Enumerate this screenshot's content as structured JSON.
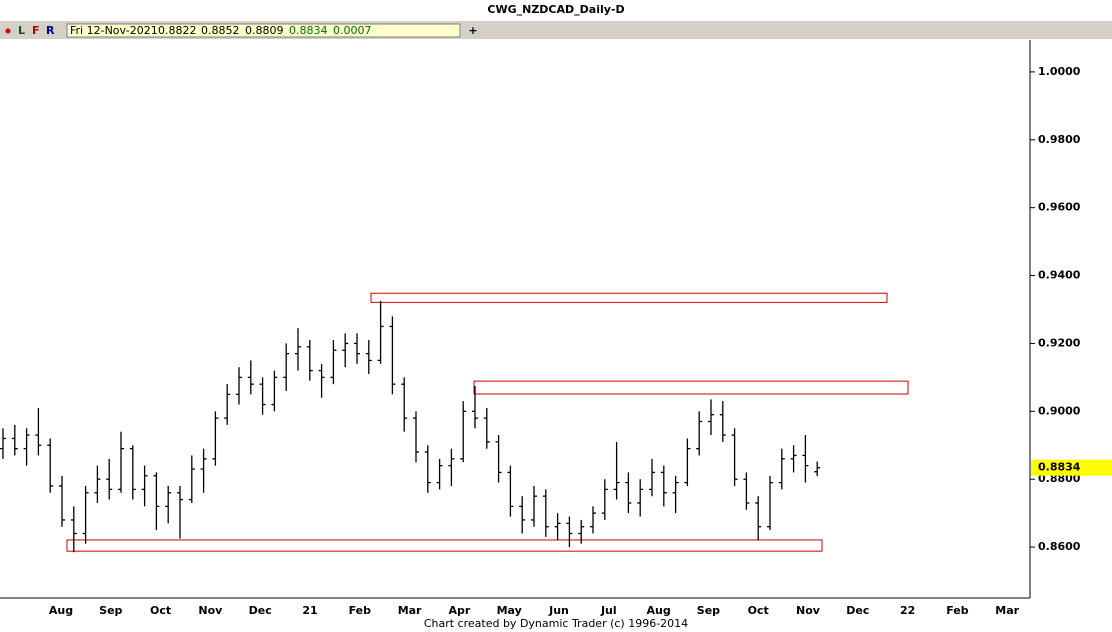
{
  "chart_data": {
    "type": "ohlc",
    "title": "CWG_NZDCAD_Daily-D",
    "toolbar": {
      "buttons": [
        "L",
        "F",
        "R"
      ],
      "info": [
        "Fri 12-Nov-2021",
        "0.8822",
        "0.8852",
        "0.8809",
        "0.8834",
        "0.0007"
      ],
      "add": "+"
    },
    "footer": "Chart created by Dynamic Trader  (c) 1996-2014",
    "x_labels": [
      "Aug",
      "Sep",
      "Oct",
      "Nov",
      "Dec",
      "21",
      "Feb",
      "Mar",
      "Apr",
      "May",
      "Jun",
      "Jul",
      "Aug",
      "Sep",
      "Oct",
      "Nov",
      "Dec",
      "22",
      "Feb",
      "Mar"
    ],
    "color": "#000000",
    "open": [
      0.889,
      0.892,
      0.889,
      0.893,
      0.89,
      0.878,
      0.868,
      0.864,
      0.876,
      0.88,
      0.877,
      0.889,
      0.877,
      0.881,
      0.872,
      0.876,
      0.874,
      0.883,
      0.886,
      0.898,
      0.905,
      0.91,
      0.908,
      0.902,
      0.91,
      0.917,
      0.919,
      0.912,
      0.91,
      0.918,
      0.92,
      0.917,
      0.915,
      0.925,
      0.908,
      0.898,
      0.888,
      0.879,
      0.884,
      0.886,
      0.9,
      0.898,
      0.891,
      0.882,
      0.872,
      0.868,
      0.875,
      0.866,
      0.867,
      0.864,
      0.866,
      0.87,
      0.877,
      0.879,
      0.873,
      0.877,
      0.882,
      0.876,
      0.879,
      0.889,
      0.897,
      0.899,
      0.893,
      0.88,
      0.873,
      0.866,
      0.879,
      0.886,
      0.887,
      0.8822
    ],
    "high": [
      0.895,
      0.896,
      0.895,
      0.901,
      0.892,
      0.881,
      0.872,
      0.878,
      0.884,
      0.886,
      0.894,
      0.89,
      0.884,
      0.882,
      0.878,
      0.878,
      0.887,
      0.889,
      0.9,
      0.908,
      0.913,
      0.915,
      0.91,
      0.912,
      0.92,
      0.9245,
      0.921,
      0.914,
      0.921,
      0.923,
      0.923,
      0.921,
      0.9325,
      0.928,
      0.91,
      0.9,
      0.89,
      0.886,
      0.889,
      0.903,
      0.9075,
      0.901,
      0.893,
      0.884,
      0.875,
      0.878,
      0.877,
      0.87,
      0.869,
      0.868,
      0.872,
      0.88,
      0.891,
      0.882,
      0.88,
      0.886,
      0.884,
      0.881,
      0.892,
      0.9,
      0.9035,
      0.903,
      0.895,
      0.882,
      0.875,
      0.881,
      0.889,
      0.89,
      0.893,
      0.8852
    ],
    "low": [
      0.886,
      0.887,
      0.884,
      0.887,
      0.876,
      0.866,
      0.8585,
      0.861,
      0.873,
      0.874,
      0.876,
      0.874,
      0.872,
      0.865,
      0.867,
      0.8625,
      0.873,
      0.876,
      0.884,
      0.896,
      0.902,
      0.905,
      0.899,
      0.9,
      0.906,
      0.912,
      0.909,
      0.904,
      0.908,
      0.913,
      0.914,
      0.911,
      0.914,
      0.905,
      0.894,
      0.885,
      0.876,
      0.877,
      0.878,
      0.885,
      0.895,
      0.889,
      0.879,
      0.869,
      0.864,
      0.866,
      0.863,
      0.862,
      0.86,
      0.861,
      0.864,
      0.868,
      0.874,
      0.87,
      0.869,
      0.875,
      0.872,
      0.87,
      0.878,
      0.887,
      0.893,
      0.891,
      0.878,
      0.871,
      0.862,
      0.865,
      0.877,
      0.882,
      0.879,
      0.8809
    ],
    "close": [
      0.892,
      0.889,
      0.893,
      0.89,
      0.878,
      0.868,
      0.864,
      0.876,
      0.88,
      0.877,
      0.889,
      0.877,
      0.881,
      0.872,
      0.876,
      0.874,
      0.883,
      0.886,
      0.898,
      0.905,
      0.91,
      0.908,
      0.902,
      0.91,
      0.917,
      0.919,
      0.912,
      0.91,
      0.918,
      0.92,
      0.917,
      0.915,
      0.925,
      0.908,
      0.898,
      0.888,
      0.879,
      0.884,
      0.886,
      0.9,
      0.898,
      0.891,
      0.882,
      0.872,
      0.868,
      0.875,
      0.866,
      0.867,
      0.864,
      0.866,
      0.87,
      0.877,
      0.879,
      0.873,
      0.877,
      0.882,
      0.876,
      0.879,
      0.889,
      0.897,
      0.899,
      0.893,
      0.88,
      0.873,
      0.866,
      0.879,
      0.886,
      0.887,
      0.884,
      0.8834
    ],
    "zones": [
      {
        "low": 0.9321,
        "high": 0.9348,
        "color": "#d40000"
      },
      {
        "low": 0.9051,
        "high": 0.9089,
        "color": "#d40000"
      },
      {
        "low": 0.8588,
        "high": 0.8621,
        "color": "#d40000"
      }
    ],
    "last_price": 0.8834,
    "ylim": [
      0.845,
      1.0094
    ],
    "yticks": [
      {
        "value": 0.86,
        "label": "0.8600"
      },
      {
        "value": 0.88,
        "label": "0.8800"
      },
      {
        "value": 0.9,
        "label": "0.9000"
      },
      {
        "value": 0.92,
        "label": "0.9200"
      },
      {
        "value": 0.94,
        "label": "0.9400"
      },
      {
        "value": 0.96,
        "label": "0.9600"
      },
      {
        "value": 0.98,
        "label": "0.9800"
      },
      {
        "value": 1.0,
        "label": "1.0000"
      }
    ]
  }
}
